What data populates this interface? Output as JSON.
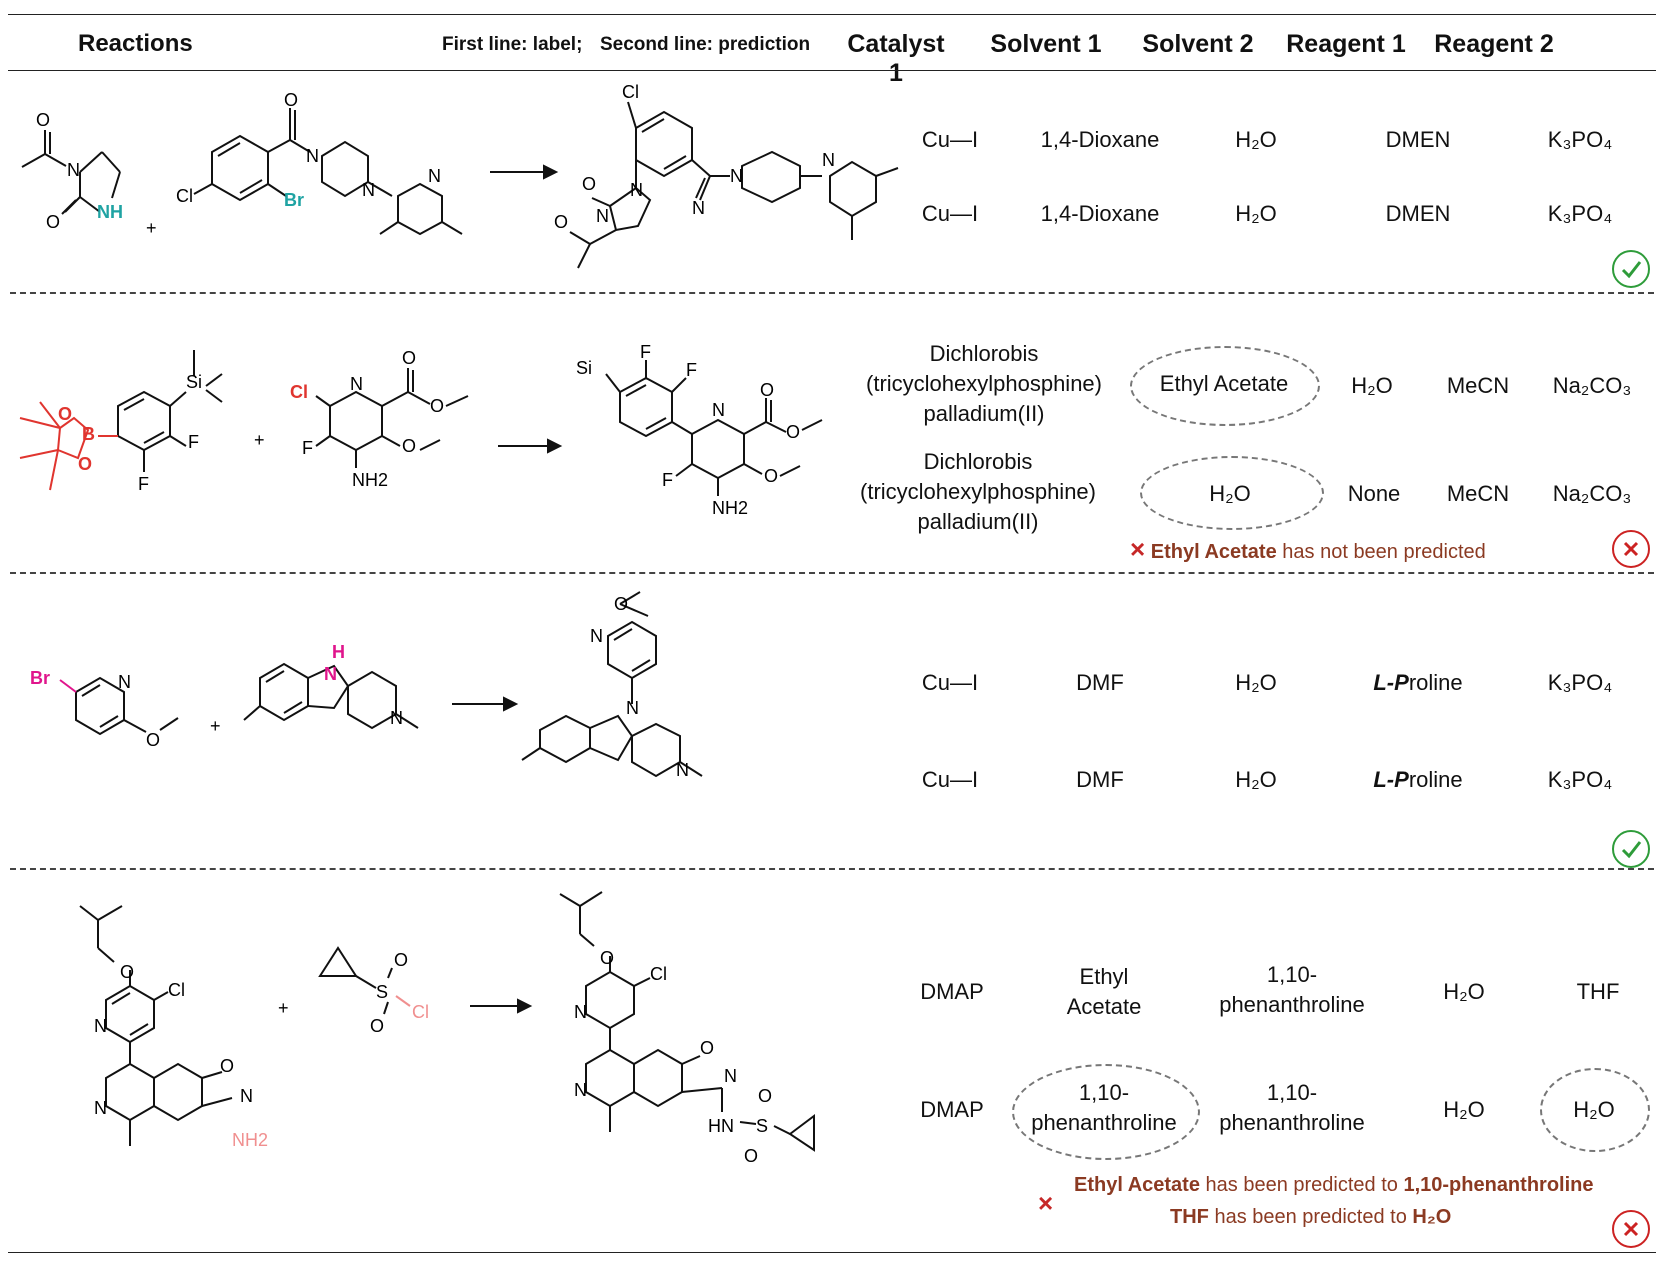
{
  "header": {
    "reactions": "Reactions",
    "label_note": "First line: label;",
    "pred_note": "Second line: prediction",
    "columns": [
      "Catalyst 1",
      "Solvent 1",
      "Solvent 2",
      "Reagent 1",
      "Reagent 2"
    ]
  },
  "rows": [
    {
      "label": {
        "catalyst1": "Cu—I",
        "solvent1": "1,4-Dioxane",
        "solvent2": "H₂O",
        "reagent1": "DMEN",
        "reagent2": "K₃PO₄"
      },
      "prediction": {
        "catalyst1": "Cu—I",
        "solvent1": "1,4-Dioxane",
        "solvent2": "H₂O",
        "reagent1": "DMEN",
        "reagent2": "K₃PO₄"
      },
      "status": "correct",
      "status_icon": "check-circle-icon",
      "molecule_labels": {
        "r1": [
          "O",
          "N",
          "O",
          "NH"
        ],
        "r2": [
          "O",
          "N",
          "N",
          "N",
          "Cl",
          "Br"
        ],
        "p": [
          "Cl",
          "O",
          "N",
          "N",
          "O",
          "N",
          "N",
          "N"
        ]
      }
    },
    {
      "label": {
        "catalyst1_line1": "Dichlorobis",
        "catalyst1_line2": "(tricyclohexylphosphine)",
        "catalyst1_line3": "palladium(II)",
        "solvent1": "Ethyl Acetate",
        "solvent2": "H₂O",
        "reagent1": "MeCN",
        "reagent2": "Na₂CO₃"
      },
      "prediction": {
        "catalyst1_line1": "Dichlorobis",
        "catalyst1_line2": "(tricyclohexylphosphine)",
        "catalyst1_line3": "palladium(II)",
        "solvent1": "H₂O",
        "solvent2": "None",
        "reagent1": "MeCN",
        "reagent2": "Na₂CO₃"
      },
      "note_bold": "Ethyl Acetate",
      "note_rest": " has not been predicted",
      "status": "incorrect",
      "status_icon": "x-circle-icon",
      "molecule_labels": {
        "r1": [
          "Si",
          "O",
          "B",
          "O",
          "F",
          "F"
        ],
        "r2": [
          "O",
          "Cl",
          "N",
          "O",
          "F",
          "O",
          "NH2"
        ],
        "p": [
          "Si",
          "F",
          "F",
          "N",
          "O",
          "O",
          "F",
          "O",
          "NH2"
        ]
      }
    },
    {
      "label": {
        "catalyst1": "Cu—I",
        "solvent1": "DMF",
        "solvent2": "H₂O",
        "reagent1_italic": "L-P",
        "reagent1_rest": "roline",
        "reagent2": "K₃PO₄"
      },
      "prediction": {
        "catalyst1": "Cu—I",
        "solvent1": "DMF",
        "solvent2": "H₂O",
        "reagent1_italic": "L-P",
        "reagent1_rest": "roline",
        "reagent2": "K₃PO₄"
      },
      "status": "correct",
      "status_icon": "check-circle-icon",
      "molecule_labels": {
        "r1": [
          "Br",
          "N",
          "O"
        ],
        "r2": [
          "H",
          "N",
          "N"
        ],
        "p": [
          "O",
          "N",
          "N",
          "N"
        ]
      }
    },
    {
      "label": {
        "catalyst1": "DMAP",
        "solvent1_line1": "Ethyl",
        "solvent1_line2": "Acetate",
        "solvent2_line1": "1,10-",
        "solvent2_line2": "phenanthroline",
        "reagent1": "H₂O",
        "reagent2": "THF"
      },
      "prediction": {
        "catalyst1": "DMAP",
        "solvent1_line1": "1,10-",
        "solvent1_line2": "phenanthroline",
        "solvent2_line1": "1,10-",
        "solvent2_line2": "phenanthroline",
        "reagent1": "H₂O",
        "reagent2": "H₂O"
      },
      "note1_bold_a": "Ethyl Acetate",
      "note1_mid": " has been predicted to ",
      "note1_bold_b": "1,10-phenanthroline",
      "note2_bold_a": "THF",
      "note2_mid": " has  been predicted to ",
      "note2_bold_b": "H₂O",
      "status": "incorrect",
      "status_icon": "x-circle-icon",
      "molecule_labels": {
        "r1": [
          "O",
          "N",
          "Cl",
          "N",
          "O",
          "N",
          "NH2"
        ],
        "r2": [
          "O",
          "S",
          "Cl",
          "O"
        ],
        "p": [
          "O",
          "N",
          "Cl",
          "N",
          "O",
          "N",
          "HN",
          "S",
          "O",
          "O"
        ]
      }
    }
  ],
  "colors": {
    "teal": "#1fa3a3",
    "red": "#e0352f",
    "magenta": "#e0158c",
    "pink": "#f08f8f",
    "note": "#8b3a22",
    "ok": "#2e9c3a",
    "bad": "#cc2222"
  }
}
